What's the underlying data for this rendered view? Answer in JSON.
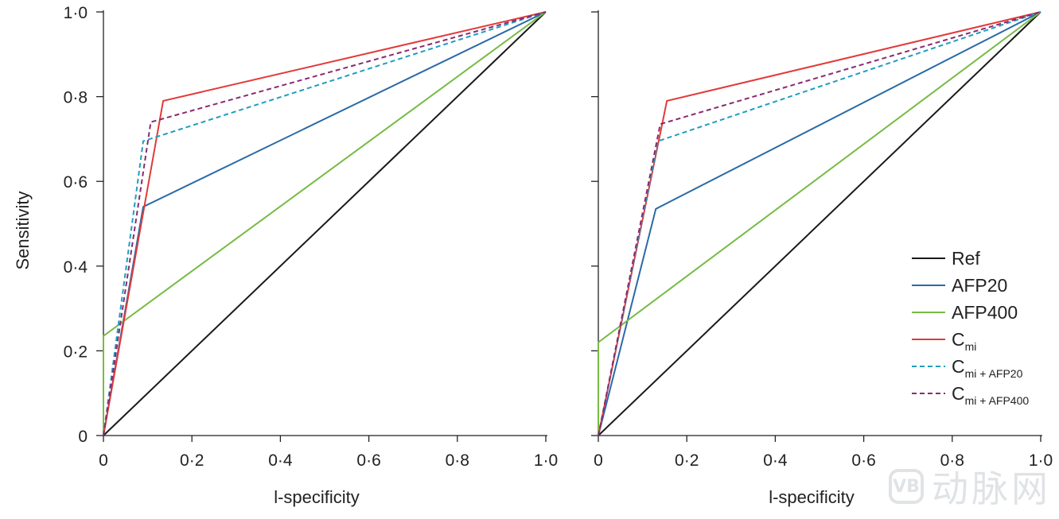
{
  "chart_data": [
    {
      "type": "line",
      "panel": "left",
      "xlabel": "l-specificity",
      "ylabel": "Sensitivity",
      "xlim": [
        0,
        1
      ],
      "ylim": [
        0,
        1
      ],
      "x_ticks": [
        "0",
        "0·2",
        "0·4",
        "0·6",
        "0·8",
        "1·0"
      ],
      "y_ticks": [
        "0",
        "0·2",
        "0·4",
        "0·6",
        "0·8",
        "1·0"
      ],
      "series": [
        {
          "name": "Ref",
          "color": "#1a1a1a",
          "dash": "solid",
          "points": [
            [
              0,
              0
            ],
            [
              1,
              1
            ]
          ]
        },
        {
          "name": "AFP20",
          "color": "#2b6aa6",
          "dash": "solid",
          "points": [
            [
              0,
              0
            ],
            [
              0.09,
              0.54
            ],
            [
              1,
              1
            ]
          ]
        },
        {
          "name": "AFP400",
          "color": "#77bb44",
          "dash": "solid",
          "points": [
            [
              0,
              0
            ],
            [
              0,
              0.235
            ],
            [
              1,
              1
            ]
          ]
        },
        {
          "name": "Cmi",
          "color": "#e23a3a",
          "dash": "solid",
          "points": [
            [
              0,
              0
            ],
            [
              0.135,
              0.79
            ],
            [
              1,
              1
            ]
          ]
        },
        {
          "name": "Cmi+AFP20",
          "color": "#1e9ec0",
          "dash": "dashed",
          "points": [
            [
              0,
              0
            ],
            [
              0.09,
              0.695
            ],
            [
              1,
              1
            ]
          ]
        },
        {
          "name": "Cmi+AFP400",
          "color": "#8a2a6e",
          "dash": "dashed",
          "points": [
            [
              0,
              0
            ],
            [
              0.107,
              0.74
            ],
            [
              1,
              1
            ]
          ]
        }
      ]
    },
    {
      "type": "line",
      "panel": "right",
      "xlabel": "l-specificity",
      "ylabel": "",
      "xlim": [
        0,
        1
      ],
      "ylim": [
        0,
        1
      ],
      "x_ticks": [
        "0",
        "0·2",
        "0·4",
        "0·6",
        "0·8",
        "1·0"
      ],
      "y_ticks": [],
      "legend": "bottom-right",
      "series": [
        {
          "name": "Ref",
          "color": "#1a1a1a",
          "dash": "solid",
          "points": [
            [
              0,
              0
            ],
            [
              1,
              1
            ]
          ]
        },
        {
          "name": "AFP20",
          "color": "#2b6aa6",
          "dash": "solid",
          "points": [
            [
              0,
              0
            ],
            [
              0.13,
              0.535
            ],
            [
              1,
              1
            ]
          ]
        },
        {
          "name": "AFP400",
          "color": "#77bb44",
          "dash": "solid",
          "points": [
            [
              0,
              0
            ],
            [
              0,
              0.22
            ],
            [
              1,
              1
            ]
          ]
        },
        {
          "name": "Cmi",
          "color": "#e23a3a",
          "dash": "solid",
          "points": [
            [
              0,
              0
            ],
            [
              0.155,
              0.79
            ],
            [
              1,
              1
            ]
          ]
        },
        {
          "name": "Cmi+AFP20",
          "color": "#1e9ec0",
          "dash": "dashed",
          "points": [
            [
              0,
              0
            ],
            [
              0.135,
              0.695
            ],
            [
              1,
              1
            ]
          ]
        },
        {
          "name": "Cmi+AFP400",
          "color": "#8a2a6e",
          "dash": "dashed",
          "points": [
            [
              0,
              0
            ],
            [
              0.14,
              0.735
            ],
            [
              1,
              1
            ]
          ]
        }
      ]
    }
  ],
  "legend": [
    {
      "base": "Ref",
      "sub": "",
      "color": "#1a1a1a",
      "dash": "solid"
    },
    {
      "base": "AFP20",
      "sub": "",
      "color": "#2b6aa6",
      "dash": "solid"
    },
    {
      "base": "AFP400",
      "sub": "",
      "color": "#77bb44",
      "dash": "solid"
    },
    {
      "base": "C",
      "sub": "mi",
      "color": "#e23a3a",
      "dash": "solid"
    },
    {
      "base": "C",
      "sub": "mi + AFP20",
      "color": "#1e9ec0",
      "dash": "dashed"
    },
    {
      "base": "C",
      "sub": "mi + AFP400",
      "color": "#8a2a6e",
      "dash": "dashed"
    }
  ],
  "watermark": {
    "logo": "VB",
    "text": "动脉网"
  }
}
